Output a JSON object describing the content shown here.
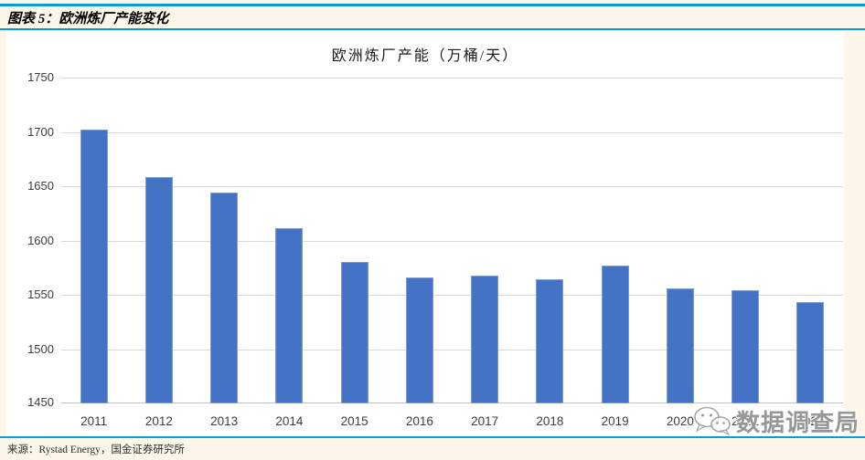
{
  "header": {
    "title": "图表 5：欧洲炼厂产能变化"
  },
  "chart_data": {
    "type": "bar",
    "title": "欧洲炼厂产能（万桶/天）",
    "categories": [
      "2011",
      "2012",
      "2013",
      "2014",
      "2015",
      "2016",
      "2017",
      "2018",
      "2019",
      "2020",
      "2021",
      "2022"
    ],
    "values": [
      1702,
      1658,
      1644,
      1611,
      1580,
      1566,
      1568,
      1564,
      1577,
      1556,
      1554,
      1543
    ],
    "xlabel": "",
    "ylabel": "",
    "ylim": [
      1450,
      1750
    ],
    "ytick_interval": 50,
    "grid": true,
    "legend": "none",
    "bar_color": "#4472C4"
  },
  "footer": {
    "source": "来源：Rystad Energy，国金证券研究所"
  },
  "watermark": {
    "icon": "wechat-icon",
    "text": "数据调查局"
  },
  "colors": {
    "accent_rule": "#0A9BDC",
    "page_background": "#FCF7E8",
    "panel_background": "#FFFFFF",
    "bar": "#4472C4",
    "gridline": "#D9D9D9",
    "axis_text": "#3d3d3d"
  }
}
